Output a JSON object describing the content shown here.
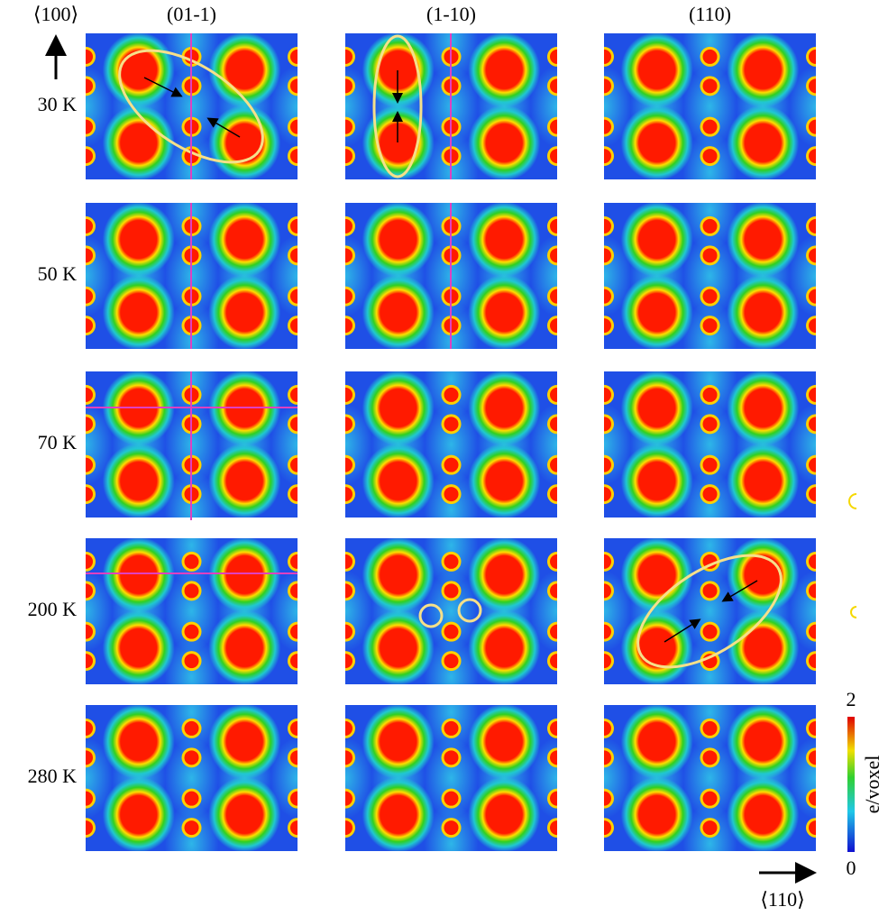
{
  "axes": {
    "vertical": "⟨100⟩",
    "horizontal": "⟨110⟩"
  },
  "columns": [
    "(01-1)",
    "(1-10)",
    "(110)"
  ],
  "rows": [
    "30 K",
    "50 K",
    "70 K",
    "200 K",
    "280 K"
  ],
  "colorbar": {
    "label": "e/voxel",
    "max": "2",
    "min": "0"
  }
}
